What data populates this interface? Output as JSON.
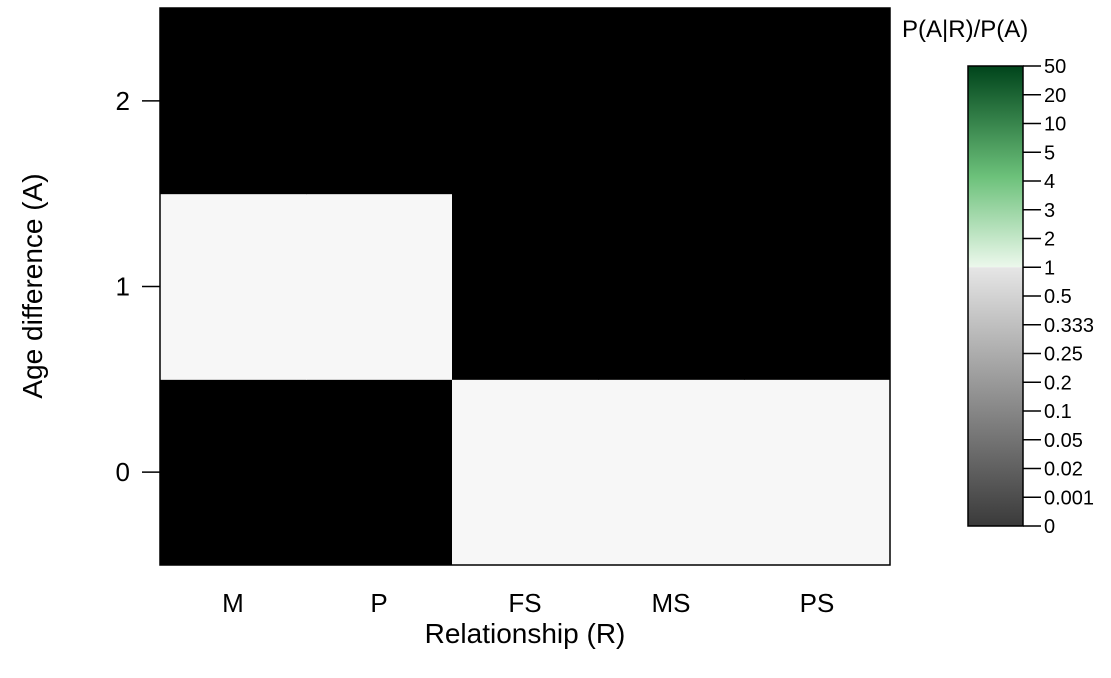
{
  "chart_data": {
    "type": "heatmap",
    "x_categories": [
      "M",
      "P",
      "FS",
      "MS",
      "PS"
    ],
    "y_categories": [
      "0",
      "1",
      "2"
    ],
    "xlabel": "Relationship (R)",
    "ylabel": "Age difference (A)",
    "cells": [
      {
        "x": "M",
        "y": "0",
        "value": 0
      },
      {
        "x": "P",
        "y": "0",
        "value": 0
      },
      {
        "x": "FS",
        "y": "0",
        "value": 1
      },
      {
        "x": "MS",
        "y": "0",
        "value": 1
      },
      {
        "x": "PS",
        "y": "0",
        "value": 1
      },
      {
        "x": "M",
        "y": "1",
        "value": 1
      },
      {
        "x": "P",
        "y": "1",
        "value": 1
      },
      {
        "x": "FS",
        "y": "1",
        "value": 0
      },
      {
        "x": "MS",
        "y": "1",
        "value": 0
      },
      {
        "x": "PS",
        "y": "1",
        "value": 0
      },
      {
        "x": "M",
        "y": "2",
        "value": 0
      },
      {
        "x": "P",
        "y": "2",
        "value": 0
      },
      {
        "x": "FS",
        "y": "2",
        "value": 0
      },
      {
        "x": "MS",
        "y": "2",
        "value": 0
      },
      {
        "x": "PS",
        "y": "2",
        "value": 0
      }
    ],
    "legend": {
      "title": "P(A|R)/P(A)",
      "ticks": [
        "50",
        "20",
        "10",
        "5",
        "4",
        "3",
        "2",
        "1",
        "0.5",
        "0.333",
        "0.25",
        "0.2",
        "0.1",
        "0.05",
        "0.02",
        "0.001",
        "0"
      ],
      "placement": "right",
      "low_color": "#000000",
      "mid_color": "#f7f7f7",
      "high_color": "#00441b"
    },
    "colors": {
      "value_0": "#000000",
      "value_1": "#f7f7f7"
    },
    "grid": false
  }
}
